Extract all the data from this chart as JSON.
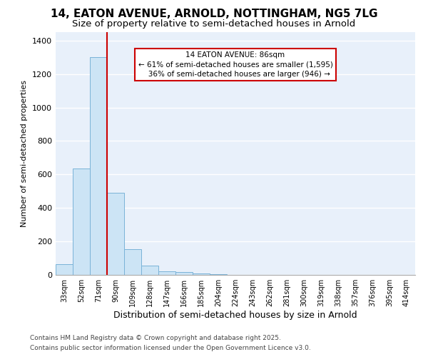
{
  "title": "14, EATON AVENUE, ARNOLD, NOTTINGHAM, NG5 7LG",
  "subtitle": "Size of property relative to semi-detached houses in Arnold",
  "xlabel": "Distribution of semi-detached houses by size in Arnold",
  "ylabel": "Number of semi-detached properties",
  "categories": [
    "33sqm",
    "52sqm",
    "71sqm",
    "90sqm",
    "109sqm",
    "128sqm",
    "147sqm",
    "166sqm",
    "185sqm",
    "204sqm",
    "224sqm",
    "243sqm",
    "262sqm",
    "281sqm",
    "300sqm",
    "319sqm",
    "338sqm",
    "357sqm",
    "376sqm",
    "395sqm",
    "414sqm"
  ],
  "values": [
    62,
    635,
    1300,
    490,
    155,
    55,
    20,
    15,
    10,
    5,
    0,
    0,
    0,
    0,
    0,
    0,
    0,
    0,
    0,
    0,
    0
  ],
  "bar_color": "#cce4f5",
  "bar_edge_color": "#7ab3d8",
  "red_line_color": "#cc0000",
  "annotation_text": "14 EATON AVENUE: 86sqm\n← 61% of semi-detached houses are smaller (1,595)\n   36% of semi-detached houses are larger (946) →",
  "annotation_box_color": "#ffffff",
  "annotation_box_edge_color": "#cc0000",
  "ylim": [
    0,
    1450
  ],
  "yticks": [
    0,
    200,
    400,
    600,
    800,
    1000,
    1200,
    1400
  ],
  "background_color": "#e8f0fa",
  "footer_line1": "Contains HM Land Registry data © Crown copyright and database right 2025.",
  "footer_line2": "Contains public sector information licensed under the Open Government Licence v3.0.",
  "title_fontsize": 11,
  "subtitle_fontsize": 9.5,
  "xlabel_fontsize": 9,
  "ylabel_fontsize": 8,
  "tick_fontsize": 7,
  "footer_fontsize": 6.5,
  "annotation_fontsize": 7.5
}
